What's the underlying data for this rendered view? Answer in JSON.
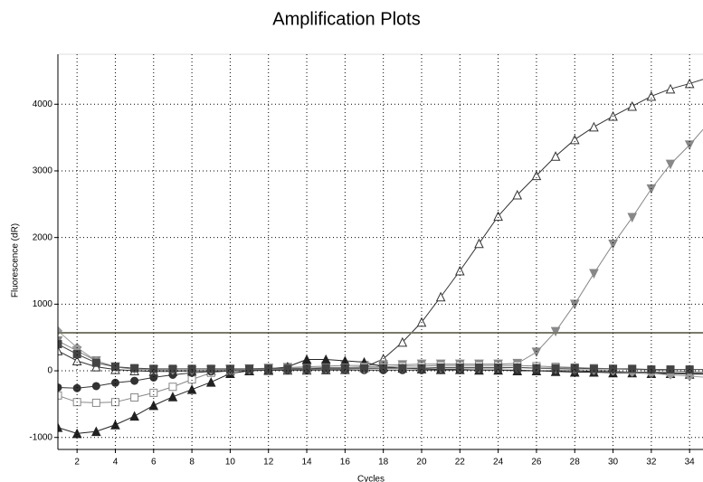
{
  "chart_data": {
    "type": "line",
    "title": "Amplification Plots",
    "xlabel": "Cycles",
    "ylabel": "Fluorescence (dR)",
    "x": [
      1,
      2,
      3,
      4,
      5,
      6,
      7,
      8,
      9,
      10,
      11,
      12,
      13,
      14,
      15,
      16,
      17,
      18,
      19,
      20,
      21,
      22,
      23,
      24,
      25,
      26,
      27,
      28,
      29,
      30,
      31,
      32,
      33,
      34,
      35
    ],
    "xlim": [
      1,
      34.7
    ],
    "xticks": [
      2,
      4,
      6,
      8,
      10,
      12,
      14,
      16,
      18,
      20,
      22,
      24,
      26,
      28,
      30,
      32,
      34
    ],
    "ylim": [
      -1180,
      4750
    ],
    "yticks": [
      -1000,
      0,
      1000,
      2000,
      3000,
      4000
    ],
    "grid": true,
    "threshold": 570,
    "threshold_color": "#7a7a6a",
    "series": [
      {
        "color": "#333333",
        "marker": "triangle-open",
        "values": [
          300,
          150,
          60,
          20,
          0,
          -10,
          -10,
          -5,
          0,
          0,
          5,
          5,
          10,
          10,
          15,
          20,
          50,
          180,
          430,
          730,
          1110,
          1500,
          1910,
          2320,
          2640,
          2930,
          3220,
          3470,
          3660,
          3820,
          3970,
          4120,
          4230,
          4310,
          4400
        ]
      },
      {
        "color": "#888888",
        "marker": "triangle-down-filled",
        "values": [
          450,
          300,
          150,
          60,
          20,
          10,
          0,
          0,
          10,
          20,
          30,
          40,
          50,
          60,
          70,
          80,
          80,
          90,
          90,
          100,
          100,
          100,
          100,
          100,
          110,
          280,
          590,
          1000,
          1460,
          1900,
          2300,
          2730,
          3100,
          3390,
          3720
        ]
      },
      {
        "color": "#222222",
        "marker": "triangle-filled",
        "values": [
          -850,
          -940,
          -910,
          -810,
          -680,
          -520,
          -390,
          -280,
          -170,
          -40,
          0,
          20,
          60,
          170,
          170,
          150,
          130,
          60,
          40,
          30,
          20,
          20,
          10,
          10,
          0,
          0,
          -10,
          -20,
          -20,
          -30,
          -30,
          -40,
          -40,
          -50,
          -50
        ]
      },
      {
        "color": "#888888",
        "marker": "square-open",
        "values": [
          -370,
          -470,
          -480,
          -470,
          -400,
          -330,
          -240,
          -130,
          -30,
          0,
          20,
          30,
          40,
          40,
          50,
          50,
          60,
          60,
          70,
          70,
          80,
          80,
          80,
          80,
          80,
          70,
          60,
          50,
          40,
          30,
          20,
          10,
          0,
          -10,
          -20
        ]
      },
      {
        "color": "#333333",
        "marker": "circle-filled",
        "values": [
          -250,
          -260,
          -230,
          -180,
          -150,
          -100,
          -60,
          -30,
          -10,
          0,
          0,
          10,
          10,
          10,
          10,
          10,
          10,
          10,
          10,
          10,
          10,
          10,
          10,
          10,
          10,
          0,
          0,
          0,
          -10,
          -10,
          -20,
          -20,
          -30,
          -30,
          -40
        ]
      },
      {
        "color": "#999999",
        "marker": "diamond-filled",
        "values": [
          600,
          350,
          150,
          60,
          30,
          20,
          10,
          10,
          10,
          10,
          20,
          20,
          30,
          30,
          30,
          30,
          30,
          40,
          40,
          40,
          40,
          40,
          40,
          40,
          50,
          40,
          30,
          20,
          10,
          0,
          -20,
          -40,
          -60,
          -80,
          -100
        ]
      },
      {
        "color": "#444444",
        "marker": "square-filled",
        "values": [
          400,
          250,
          120,
          60,
          40,
          30,
          30,
          30,
          30,
          30,
          30,
          30,
          30,
          30,
          40,
          40,
          40,
          40,
          40,
          40,
          50,
          50,
          50,
          50,
          50,
          40,
          40,
          40,
          30,
          30,
          30,
          20,
          20,
          20,
          20
        ]
      }
    ]
  }
}
